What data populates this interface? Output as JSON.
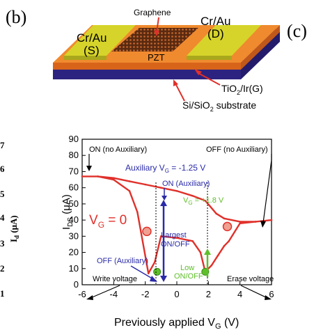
{
  "panels": {
    "b_label": "(b)",
    "c_label": "(c)"
  },
  "device": {
    "graphene": "Graphene",
    "source_line1": "Cr/Au",
    "source_line2": "(S)",
    "drain_line1": "Cr/Au",
    "drain_line2": "(D)",
    "pzt": "PZT",
    "gate_prefix": "TiO",
    "gate_sub": "2",
    "gate_suffix": "/Ir(G)",
    "substrate_prefix": "Si/SiO",
    "substrate_sub": "2",
    "substrate_suffix": " substrate"
  },
  "left_axis": {
    "label_main": "I",
    "label_sub": "d",
    "label_unit": " (μA)",
    "ticks": [
      "7",
      "6",
      "5",
      "4",
      "3",
      "2",
      "1"
    ]
  },
  "colors": {
    "substrate_blue": "#3a2fa0",
    "pzt_orange": "#e8731e",
    "electrode_yellow": "#d6d42a",
    "curve_red": "#e0302a",
    "annot_blue": "#2a2aa8",
    "annot_green": "#5fbf2a",
    "axis": "#000000"
  },
  "chart_data": {
    "type": "line",
    "xlabel_prefix": "Previously applied V",
    "xlabel_sub": "G",
    "xlabel_suffix": " (V)",
    "ylabel_main": "I",
    "ylabel_sub": "DS",
    "ylabel_unit": " (μA)",
    "xlim": [
      -6,
      6
    ],
    "ylim": [
      0,
      90
    ],
    "x_ticks": [
      -6,
      -4,
      -2,
      0,
      2,
      4,
      6
    ],
    "y_ticks": [
      0,
      10,
      20,
      30,
      40,
      50,
      60,
      70,
      80,
      90
    ],
    "series": [
      {
        "name": "V_G = 0",
        "points": [
          [
            -6,
            67
          ],
          [
            -5,
            67
          ],
          [
            -4,
            66
          ],
          [
            -3,
            64
          ],
          [
            -2,
            62
          ],
          [
            -1,
            60
          ],
          [
            0,
            58
          ],
          [
            1,
            55
          ],
          [
            1.8,
            52
          ],
          [
            2.5,
            44
          ],
          [
            3,
            41
          ],
          [
            4,
            39
          ],
          [
            5,
            39
          ],
          [
            6,
            40
          ],
          [
            5,
            39
          ],
          [
            4,
            38
          ],
          [
            3.3,
            27
          ],
          [
            3,
            24
          ],
          [
            2.6,
            18
          ],
          [
            2.2,
            12
          ],
          [
            1.8,
            8
          ],
          [
            1.5,
            20
          ],
          [
            1,
            27
          ],
          [
            0,
            29
          ],
          [
            -1,
            30
          ],
          [
            -1.4,
            14
          ],
          [
            -1.8,
            7
          ],
          [
            -2.5,
            45
          ],
          [
            -3,
            58
          ],
          [
            -4,
            65
          ],
          [
            -5,
            67
          ],
          [
            -6,
            67
          ]
        ]
      }
    ],
    "markers": [
      {
        "x": -1.9,
        "y": 33,
        "kind": "red-circle"
      },
      {
        "x": 3.2,
        "y": 36,
        "kind": "red-circle"
      },
      {
        "x": -1.25,
        "y": 8,
        "kind": "green-dot"
      },
      {
        "x": 1.8,
        "y": 8,
        "kind": "green-dot"
      }
    ],
    "annotations": {
      "on_no_aux": "ON (no Auxiliary)",
      "off_no_aux": "OFF (no Auxiliary)",
      "aux_vg_prefix": "Auxiliary V",
      "aux_vg_sub": "G",
      "aux_vg_suffix": " = -1.25 V",
      "on_aux": "ON (Auxiliary)",
      "vg_green_prefix": "V",
      "vg_green_sub": "G",
      "vg_green_suffix": " = +1.8 V",
      "vg_zero_prefix": "V",
      "vg_zero_sub": "G",
      "vg_zero_suffix": " = 0",
      "largest_line1": "Largest",
      "largest_line2": "ON/OFF",
      "off_aux": "OFF (Auxiliary)",
      "low_line1": "Low",
      "low_line2": "ON/OFF",
      "write_voltage": "Write voltage",
      "erase_voltage": "Erase voltage"
    }
  }
}
